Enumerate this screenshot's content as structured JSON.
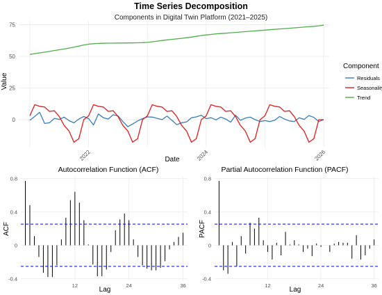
{
  "title": "Time Series Decomposition",
  "subtitle": "Components in Digital Twin Platform (2021–2025)",
  "colors": {
    "residuals": "#377eb8",
    "seasonality": "#e41a1c",
    "trend": "#4daf4a",
    "bar": "#000000",
    "ci": "#0000ff",
    "grid": "#ebebeb"
  },
  "chart_data": [
    {
      "type": "line",
      "xlabel": "Date",
      "ylabel": "Value",
      "x_ticks": [
        "2022",
        "2024",
        "2026"
      ],
      "y_ticks": [
        0,
        25,
        50,
        75
      ],
      "xlim": [
        2021.0,
        2026.0
      ],
      "ylim": [
        -22,
        78
      ],
      "legend": {
        "title": "Component",
        "placement": "right"
      },
      "x": [
        2021.0,
        2021.0833,
        2021.1667,
        2021.25,
        2021.3333,
        2021.4167,
        2021.5,
        2021.5833,
        2021.6667,
        2021.75,
        2021.8333,
        2021.9167,
        2022.0,
        2022.0833,
        2022.1667,
        2022.25,
        2022.3333,
        2022.4167,
        2022.5,
        2022.5833,
        2022.6667,
        2022.75,
        2022.8333,
        2022.9167,
        2023.0,
        2023.0833,
        2023.1667,
        2023.25,
        2023.3333,
        2023.4167,
        2023.5,
        2023.5833,
        2023.6667,
        2023.75,
        2023.8333,
        2023.9167,
        2024.0,
        2024.0833,
        2024.1667,
        2024.25,
        2024.3333,
        2024.4167,
        2024.5,
        2024.5833,
        2024.6667,
        2024.75,
        2024.8333,
        2024.9167,
        2025.0,
        2025.0833,
        2025.1667,
        2025.25,
        2025.3333,
        2025.4167,
        2025.5,
        2025.5833,
        2025.6667,
        2025.75,
        2025.8333,
        2025.9167,
        2026.0
      ],
      "series": [
        {
          "name": "Residuals",
          "values": [
            -0.5,
            2.5,
            5.8,
            -3.0,
            -2.5,
            1.0,
            0.2,
            2.0,
            -0.8,
            -2.5,
            0.5,
            2.5,
            0.8,
            -4.2,
            4.5,
            1.5,
            0.5,
            3.8,
            3.0,
            -1.5,
            -5.5,
            -3.5,
            -1.0,
            0.8,
            2.2,
            2.0,
            1.0,
            0.0,
            2.8,
            -0.5,
            -4.0,
            -2.5,
            -1.8,
            1.5,
            2.2,
            3.5,
            0.8,
            1.5,
            -0.2,
            2.0,
            0.5,
            -2.0,
            3.5,
            -0.5,
            1.2,
            2.0,
            0.0,
            -1.5,
            -0.8,
            -1.5,
            -0.5,
            2.5,
            0.5,
            -1.0,
            -1.5,
            1.5,
            0.2,
            3.2,
            1.8,
            -1.5,
            0.0
          ]
        },
        {
          "name": "Seasonality",
          "values": [
            3.0,
            11.8,
            10.5,
            10.0,
            6.5,
            7.0,
            2.5,
            -4.5,
            -9.0,
            -17.8,
            -15.0,
            0.0,
            3.0,
            11.8,
            10.5,
            10.0,
            6.5,
            7.0,
            2.5,
            -4.5,
            -9.0,
            -17.8,
            -15.0,
            0.0,
            3.0,
            11.8,
            10.5,
            10.0,
            6.5,
            7.0,
            2.5,
            -4.5,
            -9.0,
            -17.8,
            -15.0,
            0.0,
            3.0,
            11.8,
            10.5,
            10.0,
            6.5,
            7.0,
            2.5,
            -4.5,
            -9.0,
            -17.8,
            -15.0,
            0.0,
            3.0,
            11.8,
            10.5,
            10.0,
            6.5,
            7.0,
            2.5,
            -4.5,
            -9.0,
            -17.8,
            -15.0,
            0.0,
            0.0
          ]
        },
        {
          "name": "Trend",
          "values": [
            51.5,
            52.1,
            52.7,
            53.3,
            53.9,
            54.6,
            55.2,
            55.8,
            56.5,
            57.3,
            58.1,
            59.0,
            59.6,
            60.0,
            60.2,
            60.3,
            60.4,
            60.4,
            60.5,
            60.5,
            60.6,
            60.6,
            60.7,
            60.8,
            61.0,
            61.5,
            62.0,
            62.5,
            63.0,
            63.4,
            63.8,
            64.2,
            64.7,
            65.2,
            65.8,
            66.4,
            66.9,
            67.3,
            67.7,
            68.0,
            68.3,
            68.6,
            68.9,
            69.2,
            69.5,
            69.8,
            70.1,
            70.4,
            70.7,
            71.0,
            71.3,
            71.6,
            71.9,
            72.2,
            72.5,
            72.8,
            73.1,
            73.4,
            73.7,
            74.1,
            74.6
          ]
        }
      ]
    },
    {
      "type": "bar",
      "title": "Autocorrelation Function (ACF)",
      "xlabel": "Lag",
      "ylabel": "ACF",
      "x_ticks": [
        12,
        24,
        36
      ],
      "y_ticks": [
        -0.4,
        0.0,
        0.4,
        0.8
      ],
      "xlim": [
        0,
        37
      ],
      "ylim": [
        -0.42,
        0.82
      ],
      "ci": [
        0.253,
        -0.253
      ],
      "lags": [
        1,
        2,
        3,
        4,
        5,
        6,
        7,
        8,
        9,
        10,
        11,
        12,
        13,
        14,
        15,
        16,
        17,
        18,
        19,
        20,
        21,
        22,
        23,
        24,
        25,
        26,
        27,
        28,
        29,
        30,
        31,
        32,
        33,
        34,
        35,
        36
      ],
      "values": [
        0.77,
        0.48,
        0.11,
        -0.14,
        -0.33,
        -0.38,
        -0.38,
        -0.24,
        0.07,
        0.33,
        0.54,
        0.64,
        0.51,
        0.3,
        0.01,
        -0.23,
        -0.37,
        -0.37,
        -0.29,
        -0.08,
        0.18,
        0.31,
        0.38,
        0.3,
        0.07,
        -0.14,
        -0.24,
        -0.28,
        -0.3,
        -0.3,
        -0.27,
        -0.19,
        -0.05,
        0.04,
        0.1,
        0.15
      ]
    },
    {
      "type": "bar",
      "title": "Partial Autocorrelation Function (PACF)",
      "xlabel": "Lag",
      "ylabel": "PACF",
      "x_ticks": [
        12,
        24,
        36
      ],
      "y_ticks": [
        -0.4,
        0.0,
        0.4,
        0.8
      ],
      "xlim": [
        0,
        37
      ],
      "ylim": [
        -0.42,
        0.82
      ],
      "ci": [
        0.253,
        -0.253
      ],
      "lags": [
        1,
        2,
        3,
        4,
        5,
        6,
        7,
        8,
        9,
        10,
        11,
        12,
        13,
        14,
        15,
        16,
        17,
        18,
        19,
        20,
        21,
        22,
        23,
        24,
        25,
        26,
        27,
        28,
        29,
        30,
        31,
        32,
        33,
        34,
        35,
        36
      ],
      "values": [
        0.77,
        -0.3,
        -0.34,
        0.04,
        -0.25,
        0.11,
        -0.1,
        0.27,
        0.2,
        0.33,
        0.06,
        -0.08,
        -0.17,
        0.03,
        -0.12,
        0.16,
        0.01,
        0.06,
        0.01,
        -0.08,
        -0.04,
        -0.13,
        0.02,
        -0.02,
        0.0,
        -0.08,
        0.02,
        0.04,
        0.03,
        0.03,
        -0.16,
        0.12,
        -0.17,
        -0.12,
        -0.04,
        0.07
      ]
    }
  ]
}
